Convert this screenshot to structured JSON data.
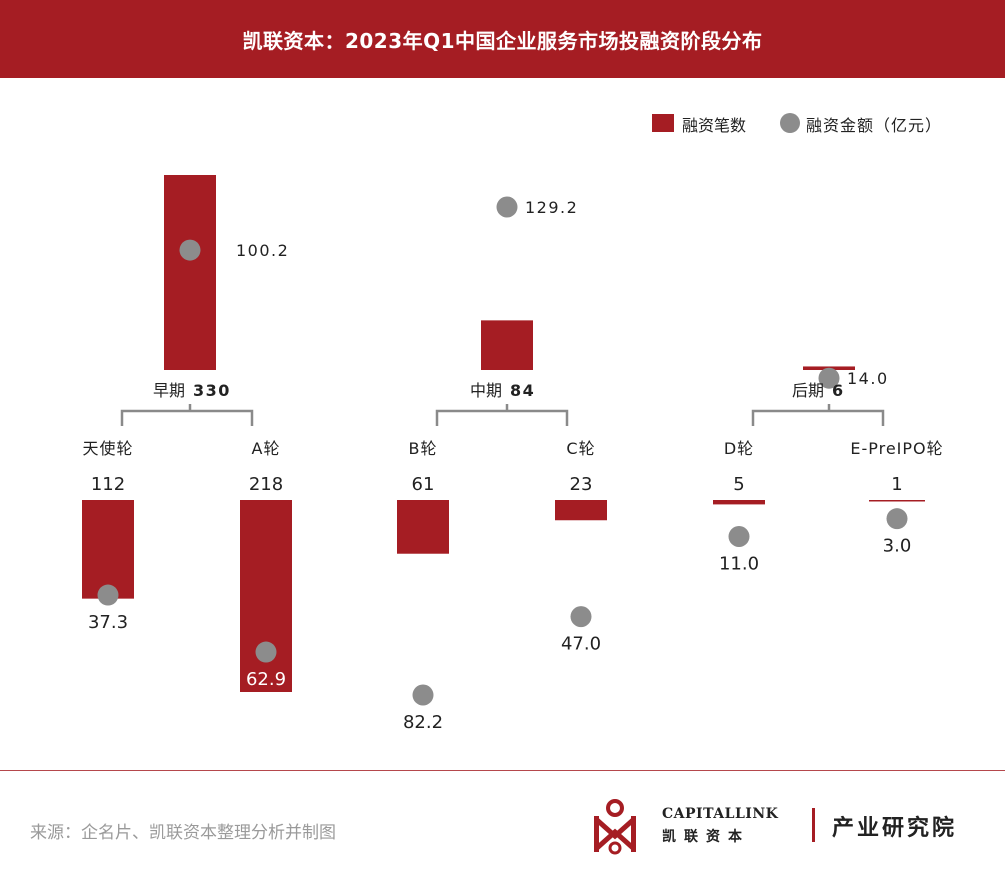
{
  "title": "凯联资本：2023年Q1中国企业服务市场投融资阶段分布",
  "legend": {
    "count_label": "融资笔数",
    "amount_label": "融资金额（亿元）"
  },
  "colors": {
    "header": "#a51d23",
    "bar": "#a51d23",
    "dot": "#8c8c8c",
    "bracket": "#8a8a8a"
  },
  "chart_data": {
    "type": "bar",
    "series": [
      {
        "name": "融资笔数"
      },
      {
        "name": "融资金额（亿元）"
      }
    ],
    "stages": [
      {
        "name": "早期",
        "count": 330,
        "amount": 100.2,
        "rounds": [
          {
            "name": "天使轮",
            "count": 112,
            "amount": 37.3
          },
          {
            "name": "A轮",
            "count": 218,
            "amount": 62.9
          }
        ]
      },
      {
        "name": "中期",
        "count": 84,
        "amount": 129.2,
        "rounds": [
          {
            "name": "B轮",
            "count": 61,
            "amount": 82.2
          },
          {
            "name": "C轮",
            "count": 23,
            "amount": 47.0
          }
        ]
      },
      {
        "name": "后期",
        "count": 6,
        "amount": 14.0,
        "rounds": [
          {
            "name": "D轮",
            "count": 5,
            "amount": 11.0
          },
          {
            "name": "E-PreIPO轮",
            "count": 1,
            "amount": 3.0
          }
        ]
      }
    ]
  },
  "footer": {
    "source": "来源：企名片、凯联资本整理分析并制图",
    "brand_en": "CAPITALLINK",
    "brand_cn": "凯联资本",
    "brand_unit": "产业研究院"
  }
}
